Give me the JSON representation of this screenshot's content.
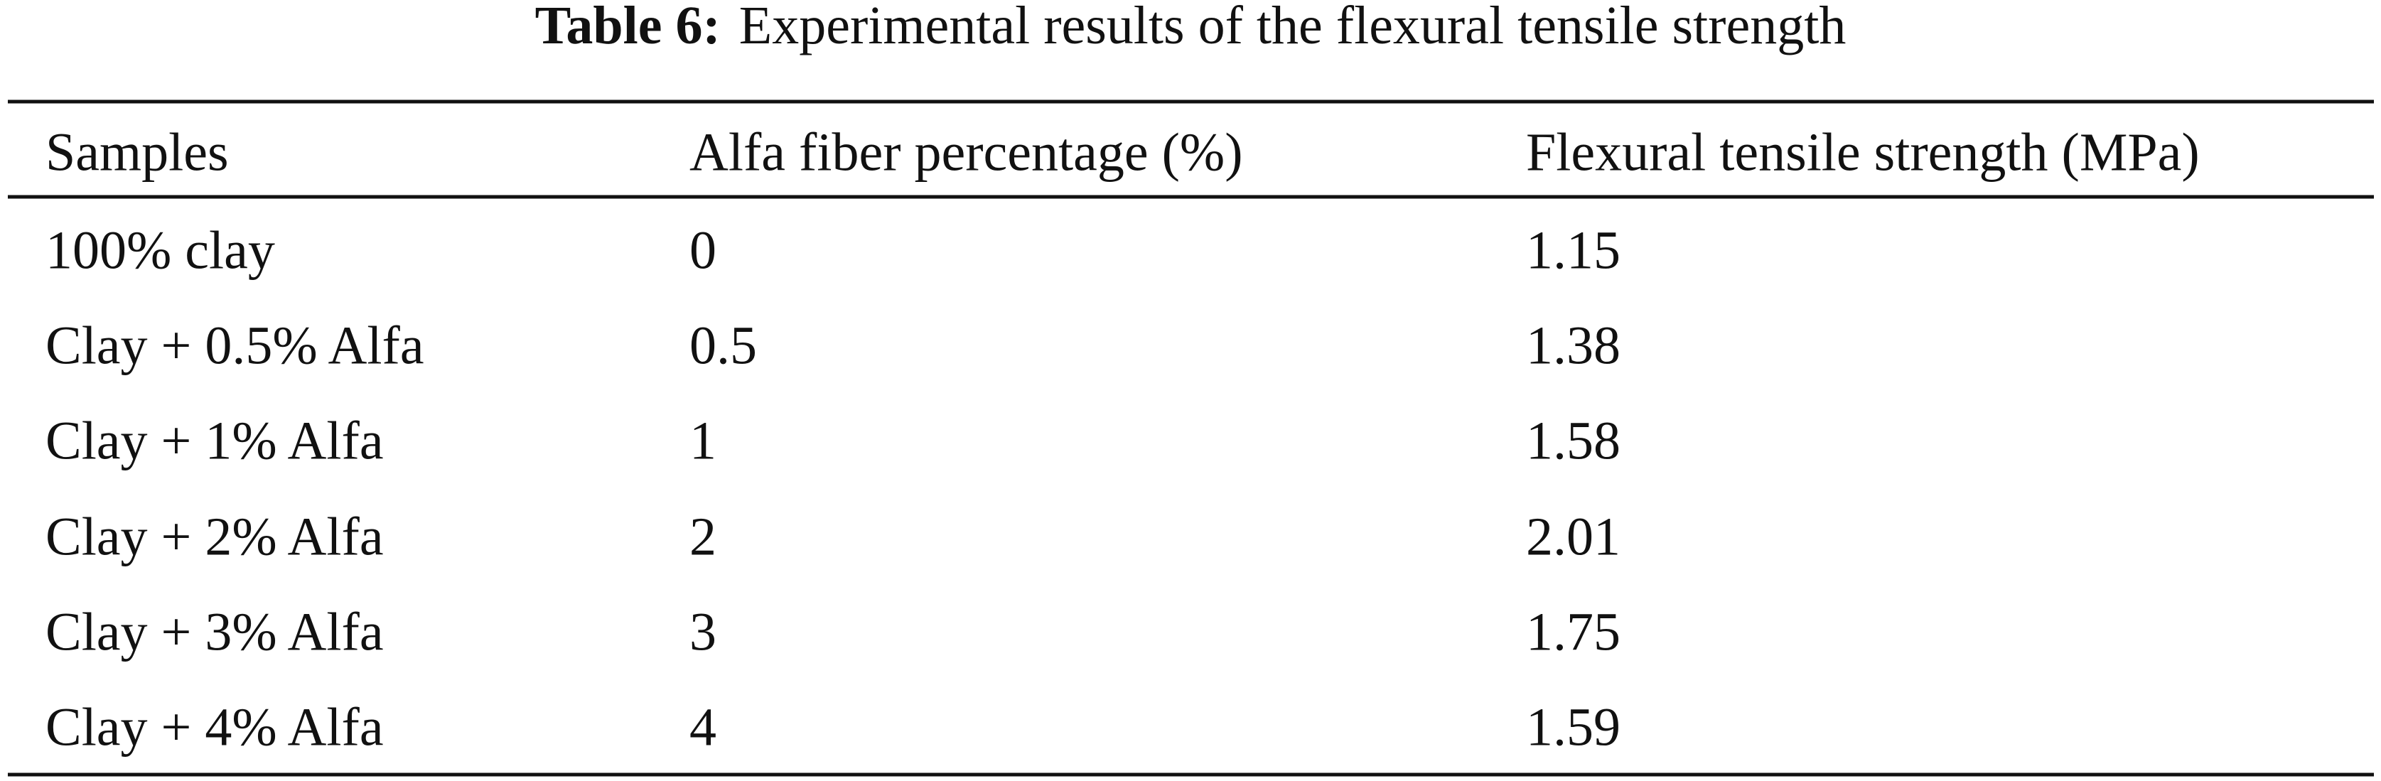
{
  "caption": {
    "label": "Table 6:",
    "text": "Experimental results of the flexural tensile strength"
  },
  "table": {
    "header": [
      "Samples",
      "Alfa fiber percentage (%)",
      "Flexural tensile strength (MPa)"
    ],
    "rows": [
      [
        "100% clay",
        "0",
        "1.15"
      ],
      [
        "Clay + 0.5% Alfa",
        "0.5",
        "1.38"
      ],
      [
        "Clay + 1% Alfa",
        "1",
        "1.58"
      ],
      [
        "Clay + 2% Alfa",
        "2",
        "2.01"
      ],
      [
        "Clay + 3% Alfa",
        "3",
        "1.75"
      ],
      [
        "Clay + 4% Alfa",
        "4",
        "1.59"
      ]
    ]
  }
}
